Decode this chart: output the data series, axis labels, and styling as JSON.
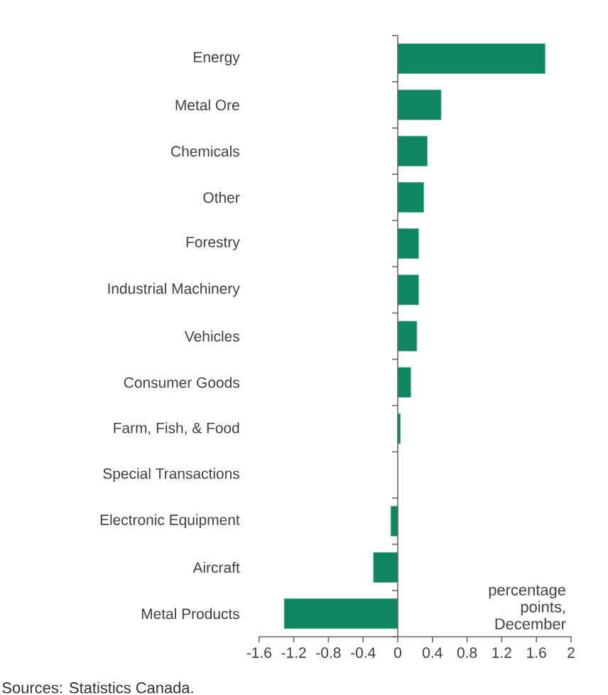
{
  "chart_data": {
    "type": "bar",
    "orientation": "horizontal",
    "categories": [
      "Energy",
      "Metal Ore",
      "Chemicals",
      "Other",
      "Forestry",
      "Industrial Machinery",
      "Vehicles",
      "Consumer Goods",
      "Farm, Fish, & Food",
      "Special Transactions",
      "Electronic Equipment",
      "Aircraft",
      "Metal Products"
    ],
    "values": [
      1.7,
      0.5,
      0.34,
      0.3,
      0.24,
      0.24,
      0.22,
      0.15,
      0.03,
      null,
      -0.08,
      -0.28,
      -1.31
    ],
    "color": "#0e8660",
    "xlim": [
      -1.6,
      2
    ],
    "xticks": [
      -1.6,
      -1.2,
      -0.8,
      -0.4,
      0,
      0.4,
      0.8,
      1.2,
      1.6,
      2
    ],
    "annotations": [
      "percentage points, December",
      "Sources: Statistics Canada."
    ]
  }
}
